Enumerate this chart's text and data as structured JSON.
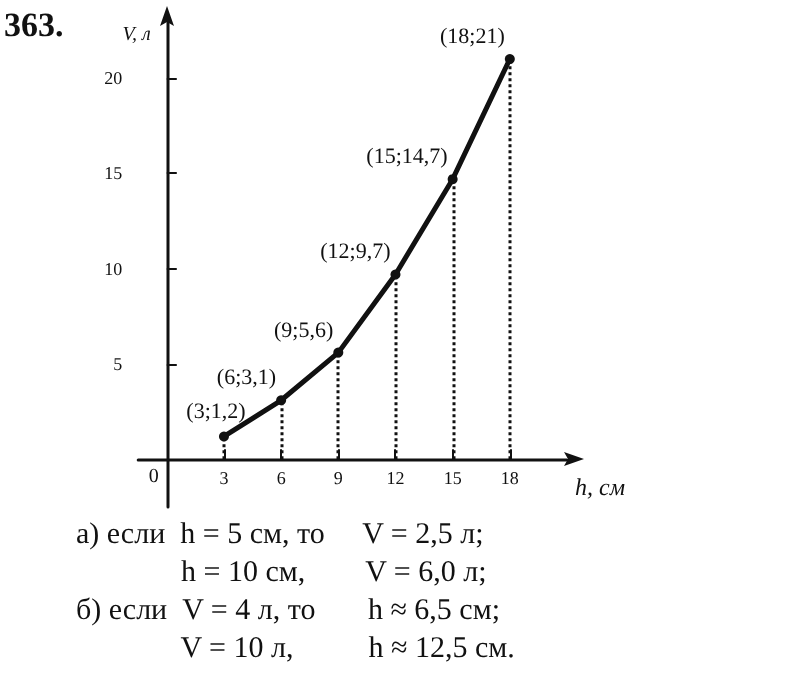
{
  "chart_data": {
    "type": "line",
    "title": "363.",
    "xlabel": "h, см",
    "ylabel": "V, л",
    "x": [
      3,
      6,
      9,
      12,
      15,
      18
    ],
    "series": [
      {
        "color": "#111111",
        "values": [
          1.2,
          3.1,
          5.6,
          9.7,
          14.7,
          21
        ],
        "value_labels": [
          "(3;1,2)",
          "(6;3,1)",
          "(9;5,6)",
          "(12;9,7)",
          "(15;14,7)",
          "(18;21)"
        ]
      }
    ],
    "xlim": [
      -1.5,
      21
    ],
    "ylim": [
      -2.5,
      23
    ],
    "xticks": [
      3,
      6,
      9,
      12,
      15,
      18
    ],
    "yticks": [
      5,
      10,
      15,
      20
    ],
    "annotations": [
      "0",
      "а) если  h = 5 см, то     V = 2,5 л;",
      "              h = 10 см,        V = 6,0 л;",
      "б) если  V = 4 л, то       h ≈ 6,5 см;",
      "              V = 10 л,          h ≈ 12,5 см."
    ],
    "marker": "circle",
    "line_style": "solid"
  }
}
